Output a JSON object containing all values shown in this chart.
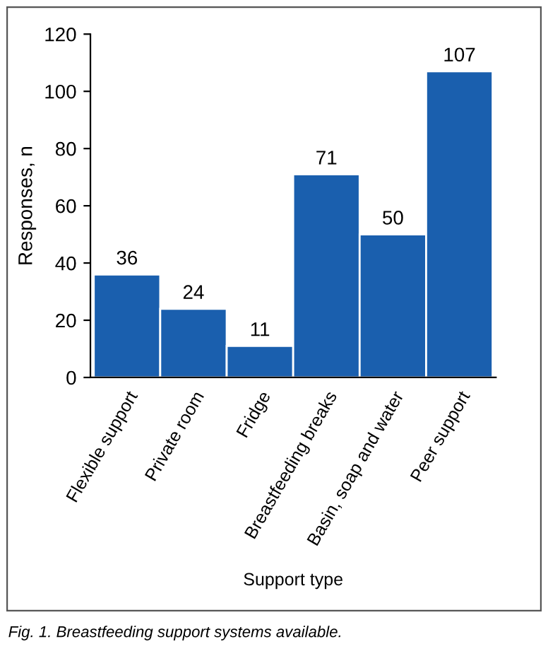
{
  "chart_data": {
    "type": "bar",
    "xlabel": "Support type",
    "ylabel": "Responses, n",
    "categories": [
      "Flexible support",
      "Private room",
      "Fridge",
      "Breastfeeding breaks",
      "Basin, soap and water",
      "Peer support"
    ],
    "values": [
      36,
      24,
      11,
      71,
      50,
      107
    ],
    "color": "#1a5fae",
    "data_labels": true,
    "ylim": [
      0,
      120
    ],
    "yticks": [
      0,
      20,
      40,
      60,
      80,
      100,
      120
    ],
    "grid": false,
    "legend": false,
    "annotations": [
      "Fig. 1. Breastfeeding support systems available."
    ]
  }
}
